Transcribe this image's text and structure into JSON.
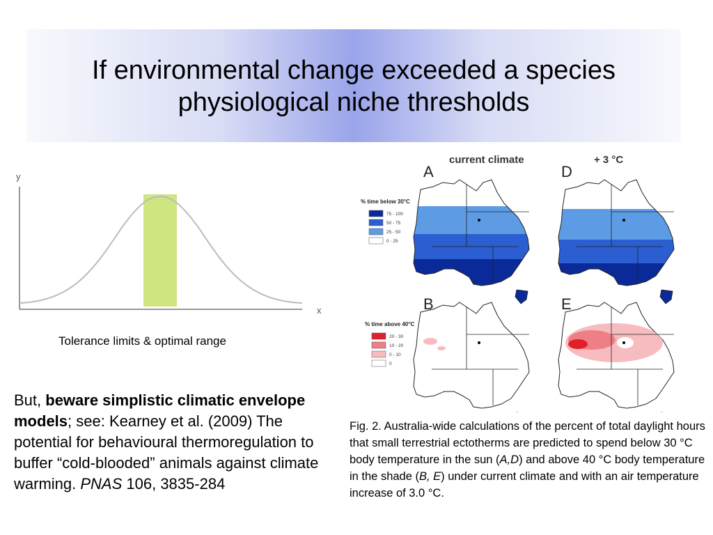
{
  "title": {
    "line1": "If environmental change exceeded a species",
    "line2": "physiological niche thresholds"
  },
  "graph": {
    "y_label": "y",
    "x_label": "x",
    "caption": "Tolerance limits & optimal range"
  },
  "body": {
    "prefix": "But, ",
    "bold": "beware simplistic climatic envelope models",
    "middle": "; see: Kearney et al. (2009) The potential for behavioural thermoregulation to buffer “cold-blooded” animals against climate warming. ",
    "journal": "PNAS",
    "suffix": " 106, 3835-284"
  },
  "figure": {
    "col1_title": "current climate",
    "col2_title": "+ 3 °C",
    "panels": [
      "A",
      "D",
      "B",
      "E"
    ],
    "legend_top": {
      "title": "% time below 30°C",
      "items": [
        {
          "label": "75 - 100",
          "color": "#0a2a9a"
        },
        {
          "label": "50 - 75",
          "color": "#2a5ed1"
        },
        {
          "label": "25 - 50",
          "color": "#5d9be5"
        },
        {
          "label": "0 - 25",
          "color": "#ffffff"
        }
      ]
    },
    "legend_bottom": {
      "title": "% time above 40°C",
      "items": [
        {
          "label": "20 - 30",
          "color": "#e0202a"
        },
        {
          "label": "10 - 20",
          "color": "#ef7f86"
        },
        {
          "label": "0 - 10",
          "color": "#f7bcbf"
        },
        {
          "label": "0",
          "color": "#ffffff"
        }
      ]
    },
    "caption": {
      "t1": "Fig. 2. Australia-wide calculations of the percent of total daylight hours that small terrestrial ectotherms are predicted to spend below 30 °C body temperature in the sun (",
      "i1": "A,D",
      "t2": ") and above 40 °C body temperature in the shade (",
      "i2": "B, E",
      "t3": ") under current climate and with an air temperature increase of 3.0 °C."
    }
  },
  "colors": {
    "optimal_band": "#cfe57f",
    "curve": "#bbbbbb"
  }
}
